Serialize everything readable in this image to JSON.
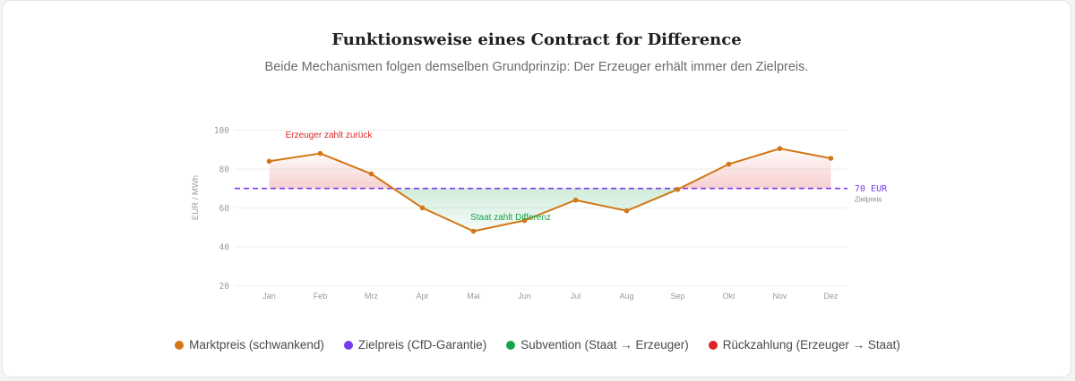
{
  "header": {
    "title": "Funktionsweise eines Contract for Difference",
    "subtitle": "Beide Mechanismen folgen demselben Grundprinzip: Der Erzeuger erhält immer den Zielpreis."
  },
  "colors": {
    "market": "#d17714",
    "target": "#7c3aed",
    "subsidy": "#16a34a",
    "payback": "#dc2626"
  },
  "chart_data": {
    "type": "line",
    "title": "Funktionsweise eines Contract for Difference",
    "xlabel": "",
    "ylabel": "EUR / MWh",
    "categories": [
      "Jan",
      "Feb",
      "Mrz",
      "Apr",
      "Mai",
      "Jun",
      "Jul",
      "Aug",
      "Sep",
      "Okt",
      "Nov",
      "Dez"
    ],
    "series": [
      {
        "name": "Marktpreis (schwankend)",
        "values": [
          84,
          88,
          77.5,
          60,
          48,
          53.5,
          64,
          58.5,
          69.5,
          82.5,
          90.5,
          85.5
        ]
      },
      {
        "name": "Zielpreis (CfD-Garantie)",
        "values": [
          70,
          70,
          70,
          70,
          70,
          70,
          70,
          70,
          70,
          70,
          70,
          70
        ]
      }
    ],
    "ylim": [
      15,
      102
    ],
    "yticks": [
      20,
      40,
      60,
      80,
      100
    ],
    "grid": true,
    "target_value": 70,
    "target_label": "70 EUR",
    "target_sublabel": "Zielpreis",
    "annotations": {
      "payback": "Erzeuger zahlt zurück",
      "subsidy": "Staat zahlt Differenz"
    }
  },
  "legend": [
    {
      "label": "Marktpreis (schwankend)",
      "color": "#d17714"
    },
    {
      "label": "Zielpreis (CfD-Garantie)",
      "color": "#7c3aed"
    },
    {
      "label": "Subvention (Staat → Erzeuger)",
      "color": "#16a34a"
    },
    {
      "label": "Rückzahlung (Erzeuger → Staat)",
      "color": "#dc2626"
    }
  ]
}
